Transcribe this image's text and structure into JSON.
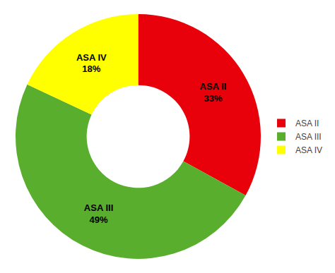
{
  "chart_data": {
    "type": "donut",
    "categories": [
      "ASA II",
      "ASA III",
      "ASA IV"
    ],
    "values": [
      33,
      49,
      18
    ],
    "value_labels": [
      "33%",
      "49%",
      "18%"
    ],
    "colors": [
      "#E8000A",
      "#5AAE2E",
      "#FFFF00"
    ],
    "data_labels": true,
    "legend": "right"
  }
}
